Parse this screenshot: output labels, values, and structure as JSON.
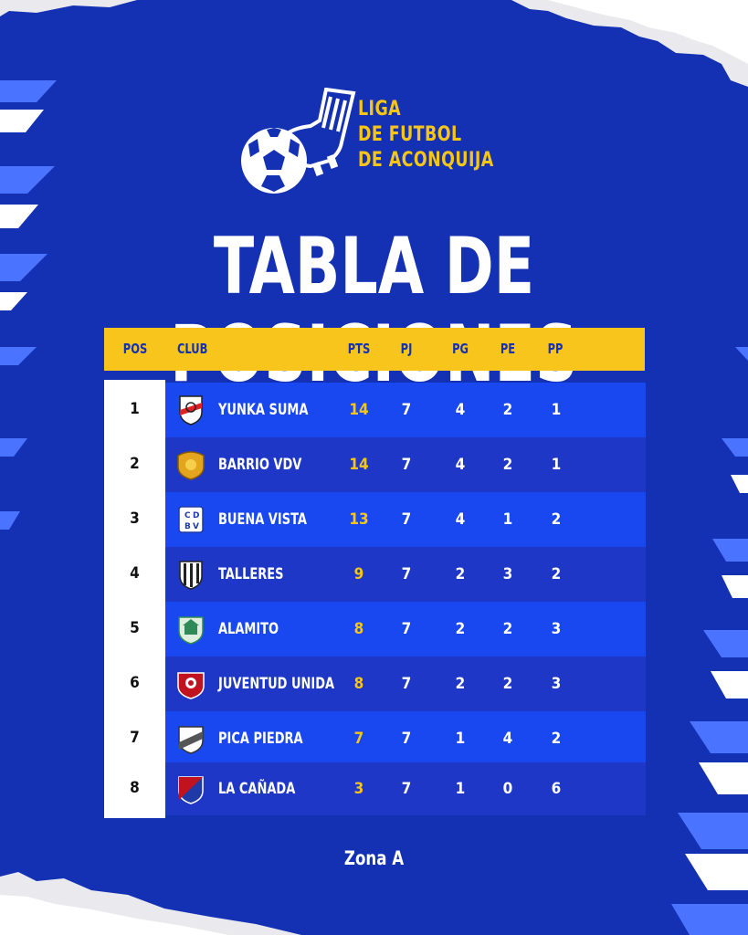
{
  "league": {
    "line1": "LIGA",
    "line2": "DE FUTBOL",
    "line3": "DE ACONQUIJA"
  },
  "title": "TABLA DE POSICIONES",
  "table": {
    "headers": {
      "pos": "POS",
      "club": "CLUB",
      "pts": "PTS",
      "pj": "PJ",
      "pg": "PG",
      "pe": "PE",
      "pp": "PP"
    },
    "rows": [
      {
        "pos": "1",
        "club": "YUNKA SUMA",
        "pts": "14",
        "pj": "7",
        "pg": "4",
        "pe": "2",
        "pp": "1"
      },
      {
        "pos": "2",
        "club": "BARRIO VDV",
        "pts": "14",
        "pj": "7",
        "pg": "4",
        "pe": "2",
        "pp": "1"
      },
      {
        "pos": "3",
        "club": "BUENA VISTA",
        "pts": "13",
        "pj": "7",
        "pg": "4",
        "pe": "1",
        "pp": "2"
      },
      {
        "pos": "4",
        "club": "TALLERES",
        "pts": "9",
        "pj": "7",
        "pg": "2",
        "pe": "3",
        "pp": "2"
      },
      {
        "pos": "5",
        "club": "ALAMITO",
        "pts": "8",
        "pj": "7",
        "pg": "2",
        "pe": "2",
        "pp": "3"
      },
      {
        "pos": "6",
        "club": "JUVENTUD UNIDA",
        "pts": "8",
        "pj": "7",
        "pg": "2",
        "pe": "2",
        "pp": "3"
      },
      {
        "pos": "7",
        "club": "PICA PIEDRA",
        "pts": "7",
        "pj": "7",
        "pg": "1",
        "pe": "4",
        "pp": "2"
      },
      {
        "pos": "8",
        "club": "LA CAÑADA",
        "pts": "3",
        "pj": "7",
        "pg": "1",
        "pe": "0",
        "pp": "6"
      }
    ]
  },
  "zone": "Zona A",
  "colors": {
    "background": "#1431b4",
    "accent": "#f5c518",
    "row_light": "#1a48f0",
    "row_dark": "#1e37c6"
  },
  "icons": {
    "logo": "soccer-ball-and-boot-icon",
    "crests": [
      "river-style-crest-icon",
      "gold-shield-crest-icon",
      "cdbv-crest-icon",
      "striped-crest-icon",
      "green-house-crest-icon",
      "red-shield-crest-icon",
      "grey-band-crest-icon",
      "red-blue-crest-icon"
    ]
  }
}
